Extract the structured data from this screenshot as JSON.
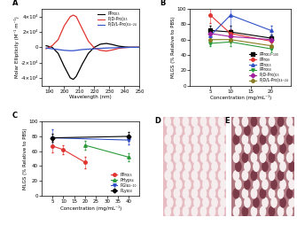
{
  "chart_data": [
    {
      "type": "line",
      "title": "A",
      "x_label": "Wavelength (nm)",
      "y_label": "Molar Ellipticity (M⁻¹ m⁻¹)",
      "x": [
        188,
        192,
        196,
        200,
        204,
        206,
        208,
        212,
        216,
        220,
        224,
        228,
        232,
        236,
        240,
        244,
        250
      ],
      "series": [
        {
          "name": "PPro₁₅",
          "color": "#000000",
          "values": [
            2000,
            0,
            -8000,
            -25000,
            -40000,
            -42000,
            -38000,
            -22000,
            -8000,
            0,
            4000,
            5000,
            3500,
            1500,
            500,
            0,
            0
          ]
        },
        {
          "name": "P(D-Pro)₁₅",
          "color": "#e0332f",
          "values": [
            -2000,
            2000,
            10000,
            28000,
            40000,
            42000,
            40000,
            24000,
            8000,
            -1000,
            -4000,
            -5000,
            -3500,
            -1500,
            -500,
            0,
            0
          ]
        },
        {
          "name": "P(D/L-Pro)₁₄₋₂₄",
          "color": "#3050c8",
          "values": [
            -1000,
            -2000,
            -3000,
            -4000,
            -4500,
            -4500,
            -4000,
            -3000,
            -2500,
            -2000,
            -1500,
            -1000,
            -800,
            -500,
            -300,
            -100,
            0
          ]
        }
      ],
      "xlim": [
        185,
        250
      ],
      "xticks": [
        190,
        200,
        210,
        220,
        230,
        240,
        250
      ],
      "ylim": [
        -50000,
        50000
      ],
      "yticks": [
        {
          "value": -40000,
          "label": "-4×10⁴"
        },
        {
          "value": -20000,
          "label": "-2×10⁴"
        },
        0,
        {
          "value": 20000,
          "label": "2×10⁴"
        },
        {
          "value": 40000,
          "label": "4×10⁴"
        }
      ],
      "legend": "upper right"
    },
    {
      "type": "line",
      "title": "B",
      "x_label": "Concentration (mg/mL⁻¹)",
      "y_label": "MLGS (% Relative to PBS)",
      "series": [
        {
          "name": "PPro₁₀₋₁₀₀",
          "color": "#000000",
          "marker": "s",
          "x": [
            5,
            10,
            20
          ],
          "values": [
            72,
            70,
            62
          ],
          "errors": [
            6,
            8,
            5
          ]
        },
        {
          "name": "PPro₉",
          "color": "#e0332f",
          "marker": "o",
          "x": [
            5,
            10,
            20
          ],
          "values": [
            92,
            68,
            58
          ],
          "errors": [
            10,
            6,
            6
          ]
        },
        {
          "name": "PPro₁₅",
          "color": "#3050c8",
          "marker": "^",
          "x": [
            5,
            10,
            20
          ],
          "values": [
            65,
            92,
            72
          ],
          "errors": [
            5,
            20,
            6
          ]
        },
        {
          "name": "PPro₅₀",
          "color": "#2a9a3a",
          "marker": "v",
          "x": [
            5,
            10,
            20
          ],
          "values": [
            55,
            57,
            48
          ],
          "errors": [
            4,
            5,
            4
          ]
        },
        {
          "name": "P(D-Pro)₁₅",
          "color": "#a020a0",
          "marker": "D",
          "x": [
            5,
            10,
            20
          ],
          "values": [
            68,
            64,
            60
          ],
          "errors": [
            5,
            5,
            4
          ]
        },
        {
          "name": "P(D/L-Pro)₁₄₋₂₄",
          "color": "#8a7a20",
          "marker": "o",
          "x": [
            5,
            10,
            20
          ],
          "values": [
            60,
            60,
            52
          ],
          "errors": [
            4,
            4,
            4
          ]
        }
      ],
      "xlim": [
        0,
        25
      ],
      "xticks": [
        5,
        10,
        15,
        20
      ],
      "ylim": [
        0,
        100
      ],
      "yticks": [
        0,
        20,
        40,
        60,
        80,
        100
      ],
      "legend": "lower right"
    },
    {
      "type": "line",
      "title": "C",
      "x_label": "Concentration (mg/mL⁻¹)",
      "y_label": "MLGS (% Relative to PBS)",
      "series": [
        {
          "name": "PPro₁₅",
          "color": "#e0332f",
          "marker": "o",
          "x": [
            5,
            10,
            20
          ],
          "values": [
            67,
            62,
            45
          ],
          "errors": [
            8,
            6,
            8
          ]
        },
        {
          "name": "PHyp₅₄",
          "color": "#2a9a3a",
          "marker": "^",
          "x": [
            20,
            40
          ],
          "values": [
            68,
            52
          ],
          "errors": [
            6,
            5
          ]
        },
        {
          "name": "PGlu₁₋₁₀",
          "color": "#3050c8",
          "marker": "v",
          "x": [
            5,
            40
          ],
          "values": [
            78,
            75
          ],
          "errors": [
            12,
            6
          ]
        },
        {
          "name": "PLys₅₀",
          "color": "#000000",
          "marker": "D",
          "x": [
            5,
            40
          ],
          "values": [
            78,
            80
          ],
          "errors": [
            5,
            6
          ]
        }
      ],
      "xlim": [
        0,
        45
      ],
      "xticks": [
        5,
        10,
        15,
        20,
        25,
        30,
        35,
        40
      ],
      "ylim": [
        0,
        100
      ],
      "yticks": [
        0,
        20,
        40,
        60,
        80,
        100
      ],
      "legend": "lower right"
    },
    {
      "type": "image",
      "title": "D"
    },
    {
      "type": "image",
      "title": "E"
    }
  ]
}
